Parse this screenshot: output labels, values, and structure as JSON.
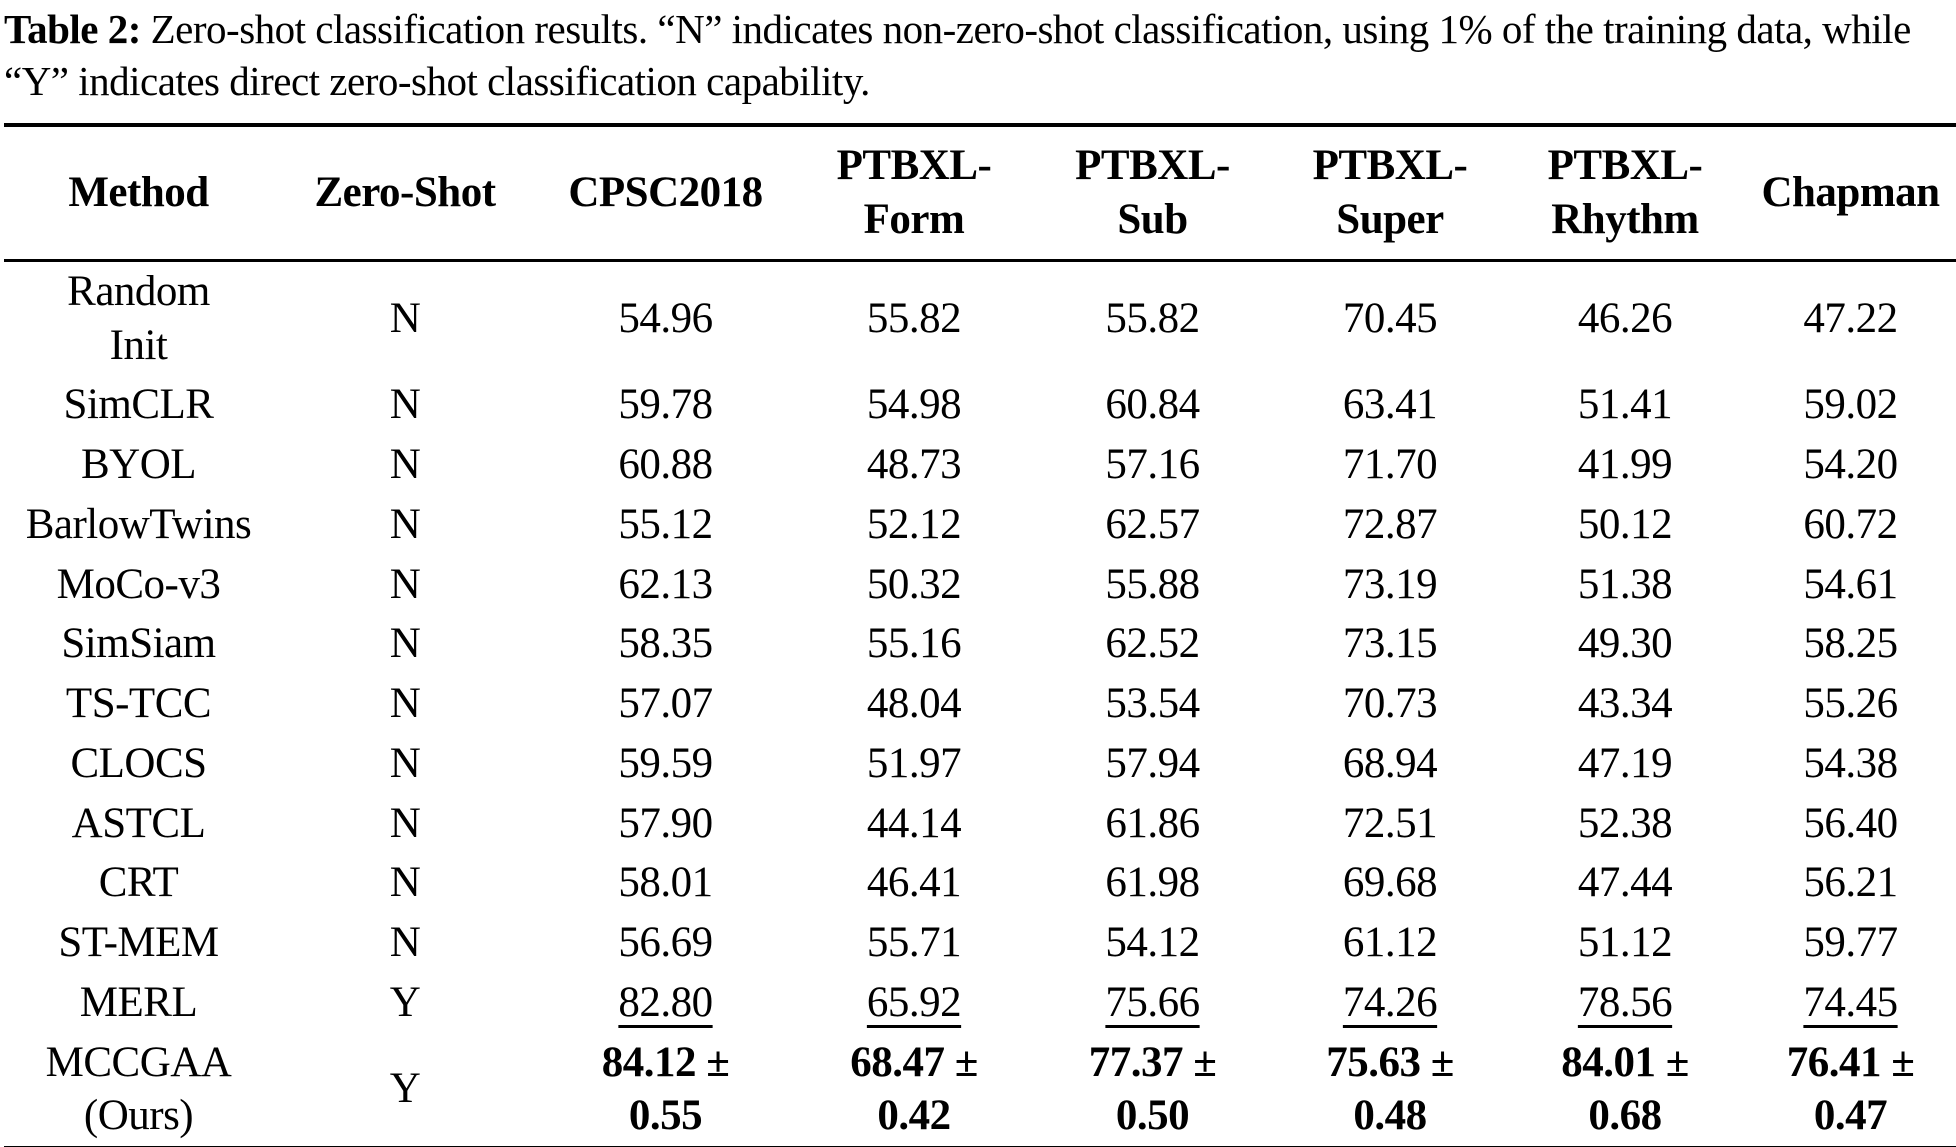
{
  "colors": {
    "text": "#000000",
    "background": "#ffffff",
    "rule": "#000000"
  },
  "caption": {
    "label": "Table 2:",
    "text": " Zero-shot classification results. “N” indicates non-zero-shot classification, using 1% of the training data, while “Y” indicates direct zero-shot classification capability."
  },
  "table": {
    "headers": [
      {
        "line1": "Method"
      },
      {
        "line1": "Zero-Shot"
      },
      {
        "line1": "CPSC2018"
      },
      {
        "line1": "PTBXL-",
        "line2": "Form"
      },
      {
        "line1": "PTBXL-",
        "line2": "Sub"
      },
      {
        "line1": "PTBXL-",
        "line2": "Super"
      },
      {
        "line1": "PTBXL-",
        "line2": "Rhythm"
      },
      {
        "line1": "Chapman"
      }
    ],
    "rows": [
      {
        "method": [
          "Random",
          "Init"
        ],
        "zero_shot": "N",
        "style": "plain",
        "values": [
          "54.96",
          "55.82",
          "55.82",
          "70.45",
          "46.26",
          "47.22"
        ]
      },
      {
        "method": [
          "SimCLR"
        ],
        "zero_shot": "N",
        "style": "plain",
        "values": [
          "59.78",
          "54.98",
          "60.84",
          "63.41",
          "51.41",
          "59.02"
        ]
      },
      {
        "method": [
          "BYOL"
        ],
        "zero_shot": "N",
        "style": "plain",
        "values": [
          "60.88",
          "48.73",
          "57.16",
          "71.70",
          "41.99",
          "54.20"
        ]
      },
      {
        "method": [
          "BarlowTwins"
        ],
        "zero_shot": "N",
        "style": "plain",
        "values": [
          "55.12",
          "52.12",
          "62.57",
          "72.87",
          "50.12",
          "60.72"
        ]
      },
      {
        "method": [
          "MoCo-v3"
        ],
        "zero_shot": "N",
        "style": "plain",
        "values": [
          "62.13",
          "50.32",
          "55.88",
          "73.19",
          "51.38",
          "54.61"
        ]
      },
      {
        "method": [
          "SimSiam"
        ],
        "zero_shot": "N",
        "style": "plain",
        "values": [
          "58.35",
          "55.16",
          "62.52",
          "73.15",
          "49.30",
          "58.25"
        ]
      },
      {
        "method": [
          "TS-TCC"
        ],
        "zero_shot": "N",
        "style": "plain",
        "values": [
          "57.07",
          "48.04",
          "53.54",
          "70.73",
          "43.34",
          "55.26"
        ]
      },
      {
        "method": [
          "CLOCS"
        ],
        "zero_shot": "N",
        "style": "plain",
        "values": [
          "59.59",
          "51.97",
          "57.94",
          "68.94",
          "47.19",
          "54.38"
        ]
      },
      {
        "method": [
          "ASTCL"
        ],
        "zero_shot": "N",
        "style": "plain",
        "values": [
          "57.90",
          "44.14",
          "61.86",
          "72.51",
          "52.38",
          "56.40"
        ]
      },
      {
        "method": [
          "CRT"
        ],
        "zero_shot": "N",
        "style": "plain",
        "values": [
          "58.01",
          "46.41",
          "61.98",
          "69.68",
          "47.44",
          "56.21"
        ]
      },
      {
        "method": [
          "ST-MEM"
        ],
        "zero_shot": "N",
        "style": "plain",
        "values": [
          "56.69",
          "55.71",
          "54.12",
          "61.12",
          "51.12",
          "59.77"
        ]
      },
      {
        "method": [
          "MERL"
        ],
        "zero_shot": "Y",
        "style": "underline",
        "values": [
          "82.80",
          "65.92",
          "75.66",
          "74.26",
          "78.56",
          "74.45"
        ]
      },
      {
        "method": [
          "MCCGAA",
          "(Ours)"
        ],
        "zero_shot": "Y",
        "style": "bold",
        "values": [
          [
            "84.12 ±",
            "0.55"
          ],
          [
            "68.47 ±",
            "0.42"
          ],
          [
            "77.37 ±",
            "0.50"
          ],
          [
            "75.63 ±",
            "0.48"
          ],
          [
            "84.01 ±",
            "0.68"
          ],
          [
            "76.41 ±",
            "0.47"
          ]
        ]
      }
    ]
  }
}
